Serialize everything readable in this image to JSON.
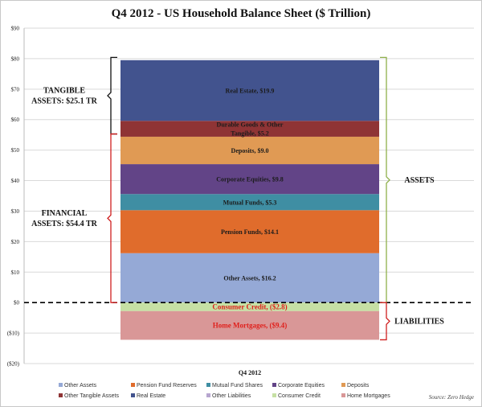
{
  "chart_data": {
    "type": "bar",
    "title": "Q4 2012 - US Household Balance Sheet ($ Trillion)",
    "categories": [
      "Q4 2012"
    ],
    "ylim": [
      -20,
      90
    ],
    "yticks": [
      -20,
      -10,
      0,
      10,
      20,
      30,
      40,
      50,
      60,
      70,
      80,
      90
    ],
    "ytick_labels": [
      "($20)",
      "($10)",
      "$0",
      "$10",
      "$20",
      "$30",
      "$40",
      "$50",
      "$60",
      "$70",
      "$80",
      "$90"
    ],
    "grid": true,
    "stacked": true,
    "legend_position": "bottom",
    "series": [
      {
        "name": "Other Assets",
        "value": 16.2,
        "label": "Other Assets, $16.2",
        "color": "#95a9d6",
        "label_color": "#1b1b1b"
      },
      {
        "name": "Pension Fund Reserves",
        "value": 14.1,
        "label": "Pension Funds, $14.1",
        "color": "#e06c2c",
        "label_color": "#1b1b1b"
      },
      {
        "name": "Mutual Fund Shares",
        "value": 5.3,
        "label": "Mutual Funds, $5.3",
        "color": "#3f8ea3",
        "label_color": "#1b1b1b"
      },
      {
        "name": "Corporate Equities",
        "value": 9.8,
        "label": "Corporate Equities, $9.8",
        "color": "#624487",
        "label_color": "#1b1b1b"
      },
      {
        "name": "Deposits",
        "value": 9.0,
        "label": "Deposits, $9.0",
        "color": "#e09a54",
        "label_color": "#1b1b1b"
      },
      {
        "name": "Other Tangible Assets",
        "value": 5.2,
        "label": "Durable Goods & Other Tangible, $5.2",
        "color": "#8f3435",
        "label_color": "#1b1b1b"
      },
      {
        "name": "Real Estate",
        "value": 19.9,
        "label": "Real Estate, $19.9",
        "color": "#42538e",
        "label_color": "#1b1b1b"
      },
      {
        "name": "Other Liabilities",
        "value": 0,
        "label": "",
        "color": "#b7a6d0",
        "label_color": "#1b1b1b"
      },
      {
        "name": "Consumer Credit",
        "value": -2.8,
        "label": "Consumer Credit, ($2.8)",
        "color": "#c6e0a4",
        "label_color": "#e0201c"
      },
      {
        "name": "Home Mortgages",
        "value": -9.4,
        "label": "Home Mortgages, ($9.4)",
        "color": "#d99797",
        "label_color": "#e0201c"
      }
    ],
    "annotations": [
      {
        "text": [
          "TANGIBLE",
          "ASSETS:  $25.1 TR"
        ],
        "range": [
          55.3,
          80.4
        ],
        "side": "left",
        "bracket_color": "#111111"
      },
      {
        "text": [
          "FINANCIAL",
          "ASSETS:  $54.4 TR"
        ],
        "range": [
          0,
          55.3
        ],
        "side": "left",
        "bracket_color": "#d01f1f"
      },
      {
        "text": [
          "ASSETS"
        ],
        "range": [
          0,
          80.4
        ],
        "side": "right",
        "bracket_color": "#8fb04a"
      },
      {
        "text": [
          "LIABILITIES"
        ],
        "range": [
          -12.2,
          0
        ],
        "side": "right",
        "bracket_color": "#d01f1f"
      }
    ],
    "source": "Source: Zero Hedge"
  }
}
